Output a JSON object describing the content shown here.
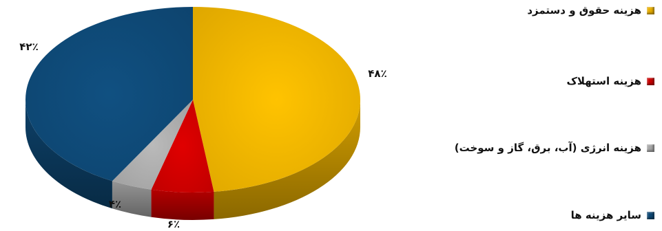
{
  "chart_data": {
    "type": "pie",
    "title": "",
    "slices": [
      {
        "label": "هزینه حقوق و دستمزد",
        "value": 48,
        "value_label": "۴۸٪",
        "color": "#E8AE00"
      },
      {
        "label": "هزینه استهلاک",
        "value": 6,
        "value_label": "۶٪",
        "color": "#C80000"
      },
      {
        "label": "هزینه انرژی (آب، برق، گاز و سوخت)",
        "value": 4,
        "value_label": "۴٪",
        "color": "#A6A6A6"
      },
      {
        "label": "سایر هزینه ها",
        "value": 42,
        "value_label": "۴۲٪",
        "color": "#0E4773"
      }
    ],
    "legend_position": "right",
    "style": "3d-pie"
  }
}
